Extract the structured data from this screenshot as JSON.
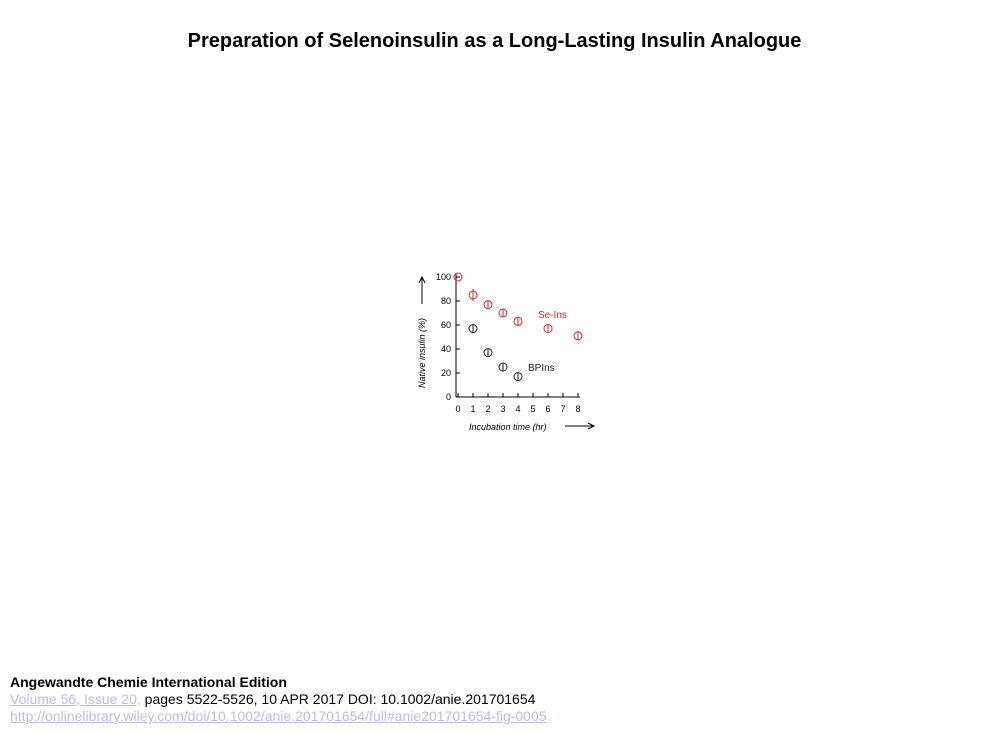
{
  "title": "Preparation of Selenoinsulin as a Long‐Lasting Insulin Analogue",
  "footer": {
    "journal": "Angewandte Chemie International Edition",
    "volume_link": "Volume 56, Issue 20,",
    "pages_text": "pages 5522-5526,  10 APR 2017  DOI: 10.1002/anie.201701654",
    "url": "http://onlinelibrary.wiley.com/doi/10.1002/anie.201701654/full#anie201701654-fig-0005"
  },
  "chart_data": {
    "type": "scatter",
    "xlabel": "Incubation time (hr)",
    "ylabel": "Native insulin (%)",
    "xlim": [
      0,
      8
    ],
    "ylim": [
      0,
      100
    ],
    "xticks": [
      "0",
      "1",
      "2",
      "3",
      "4",
      "5",
      "6",
      "7",
      "8"
    ],
    "yticks": [
      "0",
      "20",
      "40",
      "60",
      "80",
      "100"
    ],
    "grid": false,
    "series": [
      {
        "name": "Se-Ins",
        "color": "#d42a2a",
        "x": [
          0,
          1,
          2,
          3,
          4,
          6,
          8
        ],
        "y": [
          100,
          85,
          77,
          70,
          63,
          57,
          51
        ],
        "err": [
          0,
          5,
          3,
          3,
          3,
          3,
          3
        ]
      },
      {
        "name": "BPIns",
        "color": "#222222",
        "x": [
          1,
          2,
          3,
          4
        ],
        "y": [
          57,
          37,
          25,
          17
        ],
        "err": [
          4,
          3,
          3,
          3
        ]
      }
    ]
  }
}
